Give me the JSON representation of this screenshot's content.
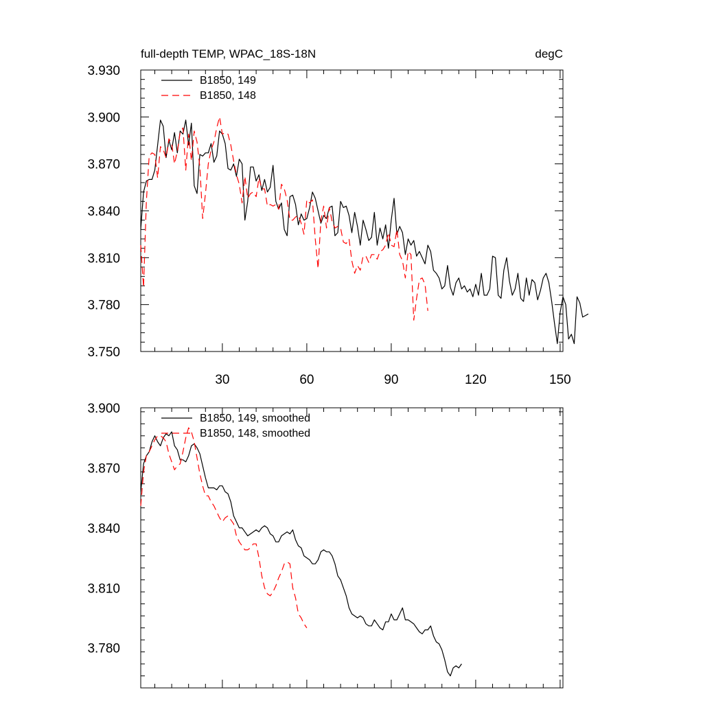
{
  "chart_data": [
    {
      "type": "line",
      "title": "full-depth TEMP, WPAC_18S-18N",
      "units": "degC",
      "xlim": [
        1,
        151
      ],
      "ylim": [
        3.75,
        3.93
      ],
      "xticks": [
        30,
        60,
        90,
        120,
        150
      ],
      "xtick_labels": [
        "30",
        "60",
        "90",
        "120",
        "150"
      ],
      "yticks": [
        3.75,
        3.78,
        3.81,
        3.84,
        3.87,
        3.9,
        3.93
      ],
      "ytick_labels": [
        "3.750",
        "3.780",
        "3.810",
        "3.840",
        "3.870",
        "3.900",
        "3.930"
      ],
      "legend": {
        "placement": "top-left"
      },
      "series": [
        {
          "name": "B1850, 149",
          "color": "#000000",
          "dash": "solid",
          "values": [
            3.828,
            3.852,
            3.859,
            3.86,
            3.86,
            3.866,
            3.882,
            3.898,
            3.894,
            3.874,
            3.885,
            3.879,
            3.89,
            3.877,
            3.891,
            3.889,
            3.898,
            3.882,
            3.896,
            3.856,
            3.851,
            3.876,
            3.875,
            3.877,
            3.877,
            3.883,
            3.871,
            3.875,
            3.891,
            3.889,
            3.883,
            3.867,
            3.866,
            3.87,
            3.862,
            3.873,
            3.87,
            3.834,
            3.846,
            3.868,
            3.868,
            3.859,
            3.863,
            3.853,
            3.86,
            3.852,
            3.855,
            3.869,
            3.846,
            3.841,
            3.845,
            3.828,
            3.824,
            3.849,
            3.85,
            3.844,
            3.831,
            3.838,
            3.834,
            3.835,
            3.842,
            3.852,
            3.848,
            3.84,
            3.832,
            3.837,
            3.835,
            3.842,
            3.843,
            3.824,
            3.826,
            3.846,
            3.842,
            3.843,
            3.837,
            3.826,
            3.839,
            3.83,
            3.818,
            3.834,
            3.828,
            3.821,
            3.823,
            3.839,
            3.818,
            3.829,
            3.822,
            3.831,
            3.816,
            3.834,
            3.848,
            3.825,
            3.83,
            3.826,
            3.812,
            3.822,
            3.818,
            3.821,
            3.811,
            3.814,
            3.81,
            3.806,
            3.818,
            3.814,
            3.802,
            3.8,
            3.797,
            3.79,
            3.792,
            3.805,
            3.791,
            3.786,
            3.794,
            3.797,
            3.79,
            3.792,
            3.788,
            3.79,
            3.785,
            3.793,
            3.786,
            3.8,
            3.786,
            3.786,
            3.79,
            3.811,
            3.81,
            3.786,
            3.784,
            3.802,
            3.81,
            3.795,
            3.786,
            3.79,
            3.8,
            3.784,
            3.782,
            3.797,
            3.786,
            3.796,
            3.794,
            3.783,
            3.789,
            3.797,
            3.8,
            3.794,
            3.782,
            3.768,
            3.755,
            3.775,
            3.785,
            3.78,
            3.758,
            3.761,
            3.755,
            3.785,
            3.781,
            3.772,
            3.773,
            3.774
          ]
        },
        {
          "name": "B1850, 148",
          "color": "#ff0000",
          "dash": "10,6",
          "values": [
            3.818,
            3.791,
            3.846,
            3.875,
            3.877,
            3.876,
            3.861,
            3.881,
            3.879,
            3.874,
            3.886,
            3.883,
            3.87,
            3.878,
            3.89,
            3.893,
            3.866,
            3.889,
            3.872,
            3.891,
            3.884,
            3.868,
            3.835,
            3.851,
            3.87,
            3.879,
            3.884,
            3.893,
            3.9,
            3.889,
            3.89,
            3.889,
            3.882,
            3.872,
            3.863,
            3.857,
            3.845,
            3.862,
            3.848,
            3.851,
            3.852,
            3.849,
            3.861,
            3.854,
            3.854,
            3.843,
            3.844,
            3.843,
            3.844,
            3.841,
            3.857,
            3.854,
            3.847,
            3.834,
            3.834,
            3.836,
            3.837,
            3.832,
            3.825,
            3.847,
            3.845,
            3.847,
            3.822,
            3.803,
            3.834,
            3.843,
            3.829,
            3.842,
            3.833,
            3.829,
            3.83,
            3.829,
            3.82,
            3.819,
            3.822,
            3.808,
            3.8,
            3.805,
            3.802,
            3.811,
            3.811,
            3.807,
            3.812,
            3.812,
            3.809,
            3.814,
            3.815,
            3.818,
            3.826,
            3.818,
            3.817,
            3.828,
            3.812,
            3.808,
            3.797,
            3.814,
            3.812,
            3.77,
            3.784,
            3.796,
            3.797,
            3.793,
            3.776
          ]
        }
      ]
    },
    {
      "type": "line",
      "title": "",
      "xlim": [
        1,
        151
      ],
      "ylim": [
        3.76,
        3.9
      ],
      "xticks": [
        30,
        60,
        90,
        120,
        150
      ],
      "xtick_labels": [
        "",
        "",
        "",
        "",
        ""
      ],
      "yticks": [
        3.78,
        3.81,
        3.84,
        3.87,
        3.9
      ],
      "ytick_labels": [
        "3.780",
        "3.810",
        "3.840",
        "3.870",
        "3.900"
      ],
      "legend": {
        "placement": "top-left"
      },
      "series": [
        {
          "name": "B1850, 149, smoothed",
          "color": "#000000",
          "dash": "solid",
          "values": [
            3.858,
            3.872,
            3.876,
            3.878,
            3.883,
            3.886,
            3.883,
            3.881,
            3.885,
            3.887,
            3.886,
            3.888,
            3.881,
            3.879,
            3.874,
            3.874,
            3.873,
            3.876,
            3.881,
            3.882,
            3.88,
            3.877,
            3.871,
            3.865,
            3.86,
            3.86,
            3.86,
            3.859,
            3.861,
            3.861,
            3.858,
            3.857,
            3.853,
            3.846,
            3.843,
            3.84,
            3.84,
            3.838,
            3.836,
            3.837,
            3.838,
            3.839,
            3.838,
            3.84,
            3.841,
            3.84,
            3.837,
            3.836,
            3.833,
            3.833,
            3.836,
            3.837,
            3.838,
            3.837,
            3.839,
            3.834,
            3.831,
            3.83,
            3.826,
            3.825,
            3.824,
            3.822,
            3.822,
            3.824,
            3.828,
            3.829,
            3.828,
            3.828,
            3.826,
            3.822,
            3.816,
            3.814,
            3.81,
            3.806,
            3.8,
            3.797,
            3.796,
            3.795,
            3.796,
            3.795,
            3.792,
            3.791,
            3.791,
            3.794,
            3.792,
            3.79,
            3.789,
            3.793,
            3.793,
            3.797,
            3.794,
            3.794,
            3.797,
            3.8,
            3.794,
            3.794,
            3.793,
            3.792,
            3.79,
            3.788,
            3.787,
            3.789,
            3.789,
            3.791,
            3.786,
            3.783,
            3.782,
            3.779,
            3.774,
            3.768,
            3.766,
            3.77,
            3.771,
            3.77,
            3.772
          ]
        },
        {
          "name": "B1850, 148, smoothed",
          "color": "#ff0000",
          "dash": "10,6",
          "values": [
            3.851,
            3.868,
            3.876,
            3.878,
            3.881,
            3.884,
            3.886,
            3.886,
            3.885,
            3.883,
            3.877,
            3.873,
            3.869,
            3.871,
            3.872,
            3.878,
            3.885,
            3.89,
            3.888,
            3.883,
            3.875,
            3.867,
            3.861,
            3.856,
            3.856,
            3.853,
            3.851,
            3.848,
            3.845,
            3.843,
            3.845,
            3.846,
            3.844,
            3.842,
            3.836,
            3.833,
            3.831,
            3.829,
            3.829,
            3.83,
            3.832,
            3.832,
            3.825,
            3.816,
            3.81,
            3.807,
            3.806,
            3.808,
            3.811,
            3.815,
            3.818,
            3.822,
            3.823,
            3.822,
            3.81,
            3.805,
            3.797,
            3.795,
            3.792,
            3.79
          ]
        }
      ]
    }
  ]
}
